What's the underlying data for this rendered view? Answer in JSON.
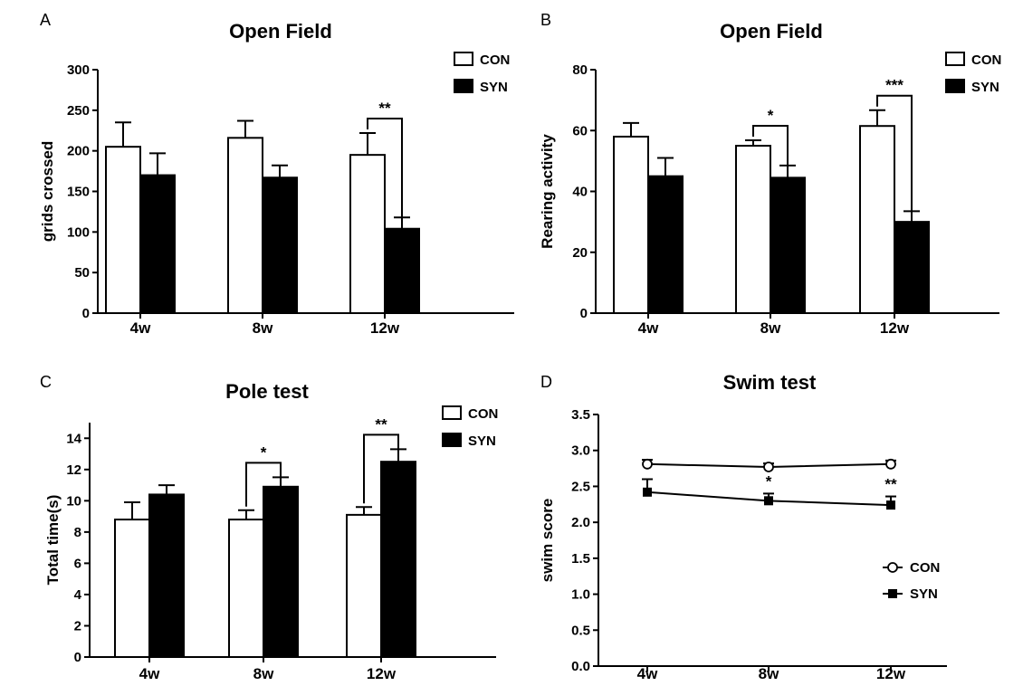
{
  "chart_data": [
    {
      "panel": "A",
      "type": "bar",
      "title": "Open Field",
      "xlabel": "",
      "ylabel": "grids crossed",
      "ylim": [
        0,
        300
      ],
      "yticks": [
        0,
        50,
        100,
        150,
        200,
        250,
        300
      ],
      "grid": false,
      "legend_position": "top-right",
      "categories": [
        "4w",
        "8w",
        "12w"
      ],
      "series": [
        {
          "name": "CON",
          "fill": "#ffffff",
          "values": [
            205,
            216,
            195
          ],
          "errors": [
            30,
            21,
            27
          ]
        },
        {
          "name": "SYN",
          "fill": "#000000",
          "values": [
            170,
            167,
            104
          ],
          "errors": [
            27,
            15,
            14
          ]
        }
      ],
      "annotations": [
        {
          "category": "12w",
          "label": "**"
        }
      ]
    },
    {
      "panel": "B",
      "type": "bar",
      "title": "Open Field",
      "xlabel": "",
      "ylabel": "Rearing activity",
      "ylim": [
        0,
        80
      ],
      "yticks": [
        0,
        20,
        40,
        60,
        80
      ],
      "grid": false,
      "legend_position": "top-right",
      "categories": [
        "4w",
        "8w",
        "12w"
      ],
      "series": [
        {
          "name": "CON",
          "fill": "#ffffff",
          "values": [
            58,
            55,
            61.5
          ],
          "errors": [
            4.5,
            1.8,
            5.2
          ]
        },
        {
          "name": "SYN",
          "fill": "#000000",
          "values": [
            45,
            44.5,
            30
          ],
          "errors": [
            6,
            4,
            3.5
          ]
        }
      ],
      "annotations": [
        {
          "category": "8w",
          "label": "*"
        },
        {
          "category": "12w",
          "label": "***"
        }
      ]
    },
    {
      "panel": "C",
      "type": "bar",
      "title": "Pole test",
      "xlabel": "",
      "ylabel": "Total time(s)",
      "ylim": [
        0,
        15
      ],
      "yticks": [
        0,
        2,
        4,
        6,
        8,
        10,
        12,
        14
      ],
      "grid": false,
      "legend_position": "top-right",
      "categories": [
        "4w",
        "8w",
        "12w"
      ],
      "series": [
        {
          "name": "CON",
          "fill": "#ffffff",
          "values": [
            8.8,
            8.8,
            9.1
          ],
          "errors": [
            1.1,
            0.6,
            0.5
          ]
        },
        {
          "name": "SYN",
          "fill": "#000000",
          "values": [
            10.4,
            10.9,
            12.5
          ],
          "errors": [
            0.6,
            0.6,
            0.8
          ]
        }
      ],
      "annotations": [
        {
          "category": "8w",
          "label": "*"
        },
        {
          "category": "12w",
          "label": "**"
        }
      ]
    },
    {
      "panel": "D",
      "type": "line",
      "title": "Swim test",
      "xlabel": "",
      "ylabel": "swim score",
      "ylim": [
        0,
        3.5
      ],
      "yticks": [
        0.0,
        0.5,
        1.0,
        1.5,
        2.0,
        2.5,
        3.0,
        3.5
      ],
      "grid": false,
      "legend_position": "bottom-right",
      "categories": [
        "4w",
        "8w",
        "12w"
      ],
      "series": [
        {
          "name": "CON",
          "marker": "open-circle",
          "values": [
            2.81,
            2.77,
            2.81
          ],
          "errors": [
            0.06,
            0.05,
            0.05
          ]
        },
        {
          "name": "SYN",
          "marker": "filled-square",
          "values": [
            2.42,
            2.3,
            2.24
          ],
          "errors": [
            0.18,
            0.1,
            0.12
          ]
        }
      ],
      "annotations": [
        {
          "category": "8w",
          "label": "*"
        },
        {
          "category": "12w",
          "label": "**"
        }
      ]
    }
  ]
}
